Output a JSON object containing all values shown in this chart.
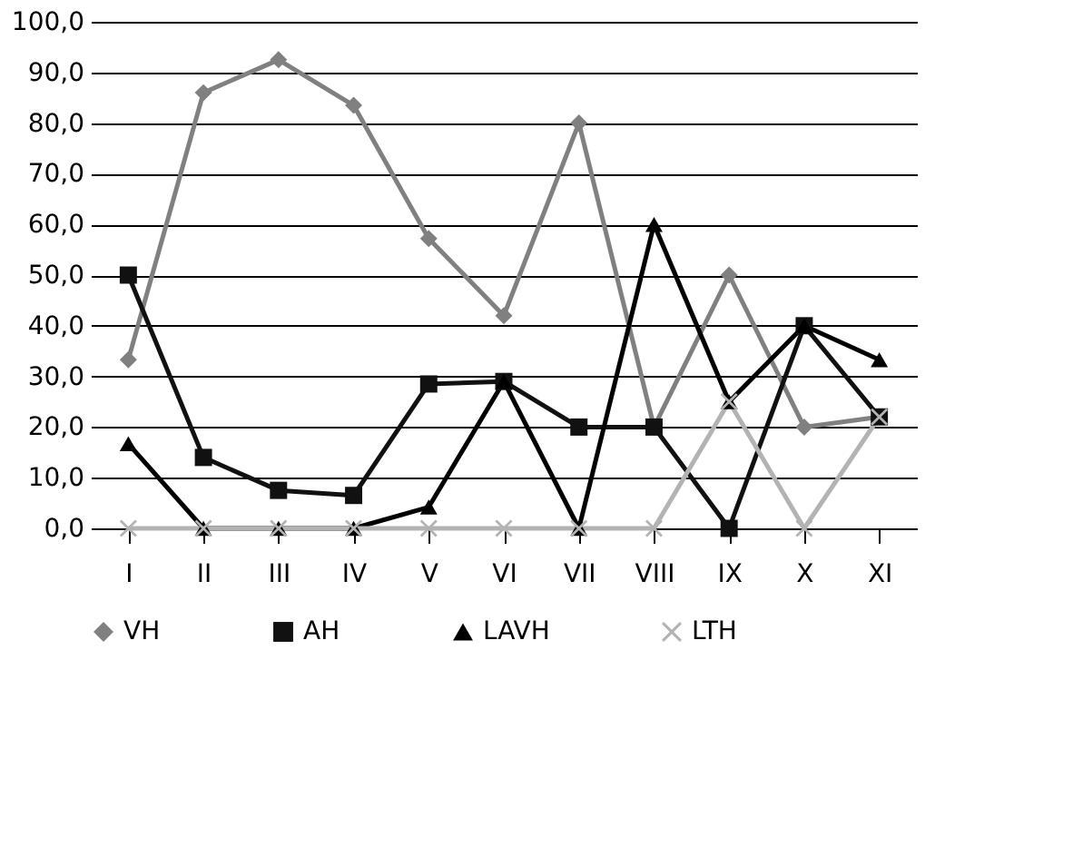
{
  "chart_data": {
    "type": "line",
    "categories": [
      "I",
      "II",
      "III",
      "IV",
      "V",
      "VI",
      "VII",
      "VIII",
      "IX",
      "X",
      "XI"
    ],
    "series": [
      {
        "name": "VH",
        "color": "#808080",
        "marker": "diamond",
        "values": [
          33.3,
          86,
          92.5,
          83.5,
          57.2,
          42,
          80,
          20,
          50,
          20,
          22
        ]
      },
      {
        "name": "AH",
        "color": "#111111",
        "marker": "square",
        "values": [
          50,
          14,
          7.5,
          6.5,
          28.5,
          29,
          20,
          20,
          0,
          40,
          22
        ]
      },
      {
        "name": "LAVH",
        "color": "#000000",
        "marker": "triangle",
        "values": [
          16.7,
          0,
          0,
          0,
          4.2,
          29,
          0,
          60,
          25,
          40,
          33.3
        ]
      },
      {
        "name": "LTH",
        "color": "#b3b3b3",
        "marker": "cross",
        "values": [
          0,
          0,
          0,
          0,
          0,
          0,
          0,
          0,
          25,
          0,
          22
        ]
      }
    ],
    "ylim": [
      0,
      100
    ],
    "yticks": [
      {
        "value": 0,
        "label": "0,0"
      },
      {
        "value": 10,
        "label": "10,0"
      },
      {
        "value": 20,
        "label": "20,0"
      },
      {
        "value": 30,
        "label": "30,0"
      },
      {
        "value": 40,
        "label": "40,0"
      },
      {
        "value": 50,
        "label": "50,0"
      },
      {
        "value": 60,
        "label": "60,0"
      },
      {
        "value": 70,
        "label": "70,0"
      },
      {
        "value": 80,
        "label": "80,0"
      },
      {
        "value": 90,
        "label": "90,0"
      },
      {
        "value": 100,
        "label": "100,0"
      }
    ],
    "grid": "y",
    "legend": "bottom",
    "line_style": "solid"
  }
}
